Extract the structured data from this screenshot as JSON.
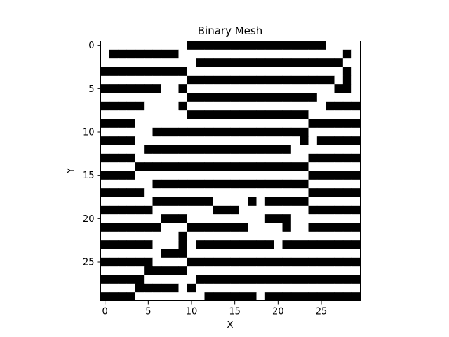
{
  "chart_data": {
    "type": "heatmap",
    "title": "Binary Mesh",
    "xlabel": "X",
    "ylabel": "Y",
    "x_ticks": [
      "0",
      "5",
      "10",
      "15",
      "20",
      "25"
    ],
    "y_ticks": [
      "0",
      "5",
      "10",
      "15",
      "20",
      "25"
    ],
    "xlim": [
      -0.5,
      29.5
    ],
    "ylim": [
      29.5,
      -0.5
    ],
    "colormap": {
      "0": "#ffffff",
      "1": "#000000"
    },
    "grid": false,
    "rows": [
      "000000000011111111111111110000",
      "011111111000000000000000000010",
      "000000000001111111111111111100",
      "111111111100000000000000000010",
      "000000000011111111111111111010",
      "111111100100000000000000000110",
      "000000000011111111111111100000",
      "111110000100000000000000001111",
      "000000000011111111111111000000",
      "111100000000000000000000111111",
      "000000111111111111111111000000",
      "111100000000000000000001011111",
      "000001111111111111111100000000",
      "111100000000000000000000111111",
      "000011111111111111111111000000",
      "111100000000000000000000111111",
      "000000111111111111111111000000",
      "111110000000000000000000111111",
      "000000111111100001011111000000",
      "111111000000011100000000111111",
      "000000011100000000011100000000",
      "111111100011111110000100111111",
      "000000000100000000000000000000",
      "111111000101111111110111111111",
      "000000011100000000000000000000",
      "111111000011111111111111111111",
      "000001111100000000000000000000",
      "111110000001111111111111111111",
      "000011111010000000000000000000",
      "111100000000111111011111111111"
    ]
  }
}
